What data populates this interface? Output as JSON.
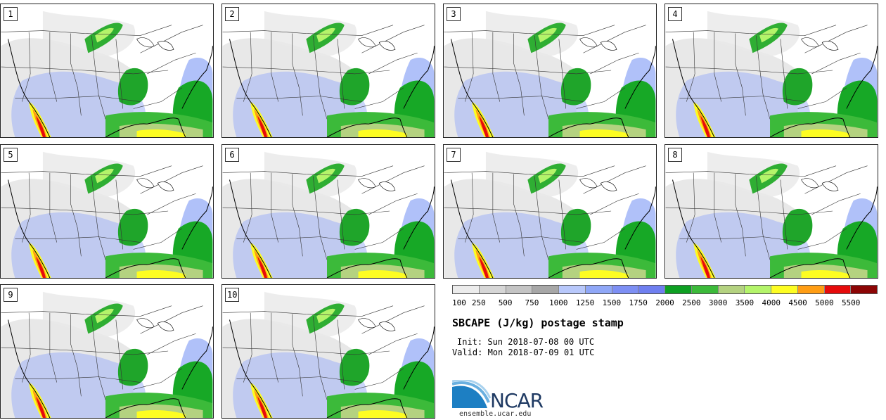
{
  "panels": [
    {
      "label": "1"
    },
    {
      "label": "2"
    },
    {
      "label": "3"
    },
    {
      "label": "4"
    },
    {
      "label": "5"
    },
    {
      "label": "6"
    },
    {
      "label": "7"
    },
    {
      "label": "8"
    },
    {
      "label": "9"
    },
    {
      "label": "10"
    }
  ],
  "colorbar": {
    "colors": [
      "#ececec",
      "#d6d6d6",
      "#c4c4c4",
      "#a7a7a7",
      "#b8c8fb",
      "#8fa7f7",
      "#7d8ff4",
      "#6f7ff0",
      "#0ea023",
      "#3cba3a",
      "#b4d280",
      "#b4f46a",
      "#fdfd22",
      "#ff9d14",
      "#e60b0b",
      "#8c0505"
    ],
    "ticks": [
      "100",
      "250",
      "500",
      "750",
      "1000",
      "1250",
      "1500",
      "1750",
      "2000",
      "2500",
      "3000",
      "3500",
      "4000",
      "4500",
      "5000",
      "5500"
    ]
  },
  "title": "SBCAPE (J/kg) postage stamp",
  "init": "Init: Sun 2018-07-08 00 UTC",
  "valid": "Valid: Mon 2018-07-09 01 UTC",
  "logo": {
    "text": "NCAR",
    "url": "ensemble.ucar.edu"
  }
}
